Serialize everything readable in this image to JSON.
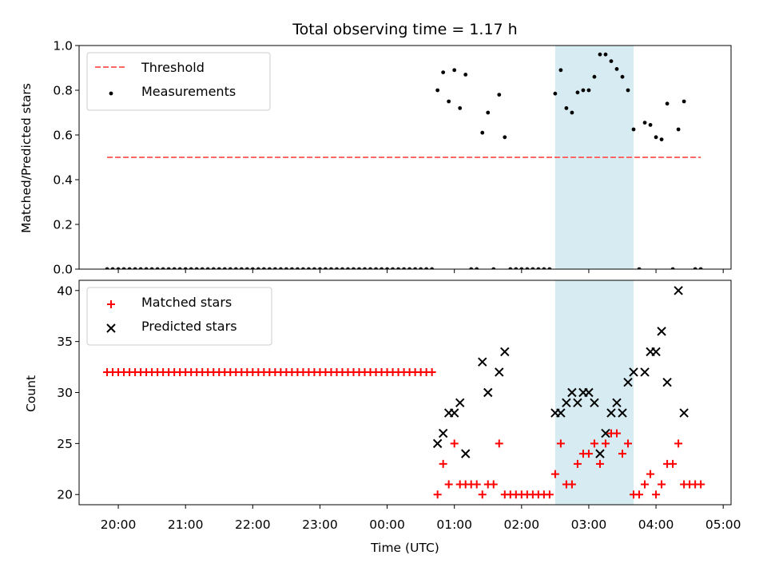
{
  "chart_data": {
    "title": "Total observing time = 1.17 h",
    "xlabel": "Time (UTC)",
    "x_unit": "hours since 20:00 UTC",
    "x_ticks": [
      "20:00",
      "21:00",
      "22:00",
      "23:00",
      "00:00",
      "01:00",
      "02:00",
      "03:00",
      "04:00",
      "05:00"
    ],
    "xlim": [
      "19:25",
      "05:07"
    ],
    "shaded_region": {
      "start": "02:30",
      "end": "03:40",
      "color": "#add8e6"
    },
    "panels": [
      {
        "type": "scatter",
        "ylabel": "Matched/Predicted stars",
        "ylim": [
          0.0,
          1.0
        ],
        "y_ticks": [
          "0.0",
          "0.2",
          "0.4",
          "0.6",
          "0.8",
          "1.0"
        ],
        "legend_position": "top-left",
        "threshold": {
          "name": "Threshold",
          "value": 0.5,
          "x_start": "19:50",
          "x_end": "04:40",
          "color": "#ff6666",
          "style": "dashed"
        },
        "measurements": {
          "name": "Measurements",
          "color": "#000000",
          "zero_x": [
            "19:50",
            "19:55",
            "20:00",
            "20:05",
            "20:10",
            "20:15",
            "20:20",
            "20:25",
            "20:30",
            "20:35",
            "20:40",
            "20:45",
            "20:50",
            "20:55",
            "21:00",
            "21:05",
            "21:10",
            "21:15",
            "21:20",
            "21:25",
            "21:30",
            "21:35",
            "21:40",
            "21:45",
            "21:50",
            "21:55",
            "22:00",
            "22:05",
            "22:10",
            "22:15",
            "22:20",
            "22:25",
            "22:30",
            "22:35",
            "22:40",
            "22:45",
            "22:50",
            "22:55",
            "23:00",
            "23:05",
            "23:10",
            "23:15",
            "23:20",
            "23:25",
            "23:30",
            "23:35",
            "23:40",
            "23:45",
            "23:50",
            "23:55",
            "00:00",
            "00:05",
            "00:10",
            "00:15",
            "00:20",
            "00:25",
            "00:30",
            "00:35",
            "00:40",
            "01:15",
            "01:20",
            "01:35",
            "01:50",
            "01:55",
            "02:00",
            "02:05",
            "02:10",
            "02:15",
            "02:20",
            "02:25",
            "03:45",
            "04:15",
            "04:35",
            "04:40"
          ],
          "points": [
            {
              "x": "00:45",
              "y": 0.8
            },
            {
              "x": "00:50",
              "y": 0.88
            },
            {
              "x": "00:55",
              "y": 0.75
            },
            {
              "x": "01:00",
              "y": 0.89
            },
            {
              "x": "01:05",
              "y": 0.72
            },
            {
              "x": "01:10",
              "y": 0.87
            },
            {
              "x": "01:25",
              "y": 0.61
            },
            {
              "x": "01:30",
              "y": 0.7
            },
            {
              "x": "01:40",
              "y": 0.78
            },
            {
              "x": "01:45",
              "y": 0.59
            },
            {
              "x": "02:30",
              "y": 0.785
            },
            {
              "x": "02:35",
              "y": 0.89
            },
            {
              "x": "02:40",
              "y": 0.72
            },
            {
              "x": "02:45",
              "y": 0.7
            },
            {
              "x": "02:50",
              "y": 0.79
            },
            {
              "x": "02:55",
              "y": 0.8
            },
            {
              "x": "03:00",
              "y": 0.8
            },
            {
              "x": "03:05",
              "y": 0.86
            },
            {
              "x": "03:10",
              "y": 0.96
            },
            {
              "x": "03:15",
              "y": 0.96
            },
            {
              "x": "03:20",
              "y": 0.93
            },
            {
              "x": "03:25",
              "y": 0.895
            },
            {
              "x": "03:30",
              "y": 0.86
            },
            {
              "x": "03:35",
              "y": 0.8
            },
            {
              "x": "03:40",
              "y": 0.625
            },
            {
              "x": "03:50",
              "y": 0.655
            },
            {
              "x": "03:55",
              "y": 0.645
            },
            {
              "x": "04:00",
              "y": 0.59
            },
            {
              "x": "04:05",
              "y": 0.58
            },
            {
              "x": "04:10",
              "y": 0.74
            },
            {
              "x": "04:20",
              "y": 0.625
            },
            {
              "x": "04:25",
              "y": 0.75
            }
          ]
        }
      },
      {
        "type": "scatter",
        "ylabel": "Count",
        "ylim": [
          19.0,
          41.0
        ],
        "y_ticks": [
          "20",
          "25",
          "30",
          "35",
          "40"
        ],
        "legend_position": "top-left",
        "series": [
          {
            "name": "Matched stars",
            "marker": "plus",
            "color": "#ff0000",
            "points": [
              {
                "x": "19:50",
                "y": 32
              },
              {
                "x": "19:55",
                "y": 32
              },
              {
                "x": "20:00",
                "y": 32
              },
              {
                "x": "20:05",
                "y": 32
              },
              {
                "x": "20:10",
                "y": 32
              },
              {
                "x": "20:15",
                "y": 32
              },
              {
                "x": "20:20",
                "y": 32
              },
              {
                "x": "20:25",
                "y": 32
              },
              {
                "x": "20:30",
                "y": 32
              },
              {
                "x": "20:35",
                "y": 32
              },
              {
                "x": "20:40",
                "y": 32
              },
              {
                "x": "20:45",
                "y": 32
              },
              {
                "x": "20:50",
                "y": 32
              },
              {
                "x": "20:55",
                "y": 32
              },
              {
                "x": "21:00",
                "y": 32
              },
              {
                "x": "21:05",
                "y": 32
              },
              {
                "x": "21:10",
                "y": 32
              },
              {
                "x": "21:15",
                "y": 32
              },
              {
                "x": "21:20",
                "y": 32
              },
              {
                "x": "21:25",
                "y": 32
              },
              {
                "x": "21:30",
                "y": 32
              },
              {
                "x": "21:35",
                "y": 32
              },
              {
                "x": "21:40",
                "y": 32
              },
              {
                "x": "21:45",
                "y": 32
              },
              {
                "x": "21:50",
                "y": 32
              },
              {
                "x": "21:55",
                "y": 32
              },
              {
                "x": "22:00",
                "y": 32
              },
              {
                "x": "22:05",
                "y": 32
              },
              {
                "x": "22:10",
                "y": 32
              },
              {
                "x": "22:15",
                "y": 32
              },
              {
                "x": "22:20",
                "y": 32
              },
              {
                "x": "22:25",
                "y": 32
              },
              {
                "x": "22:30",
                "y": 32
              },
              {
                "x": "22:35",
                "y": 32
              },
              {
                "x": "22:40",
                "y": 32
              },
              {
                "x": "22:45",
                "y": 32
              },
              {
                "x": "22:50",
                "y": 32
              },
              {
                "x": "22:55",
                "y": 32
              },
              {
                "x": "23:00",
                "y": 32
              },
              {
                "x": "23:05",
                "y": 32
              },
              {
                "x": "23:10",
                "y": 32
              },
              {
                "x": "23:15",
                "y": 32
              },
              {
                "x": "23:20",
                "y": 32
              },
              {
                "x": "23:25",
                "y": 32
              },
              {
                "x": "23:30",
                "y": 32
              },
              {
                "x": "23:35",
                "y": 32
              },
              {
                "x": "23:40",
                "y": 32
              },
              {
                "x": "23:45",
                "y": 32
              },
              {
                "x": "23:50",
                "y": 32
              },
              {
                "x": "23:55",
                "y": 32
              },
              {
                "x": "00:00",
                "y": 32
              },
              {
                "x": "00:05",
                "y": 32
              },
              {
                "x": "00:10",
                "y": 32
              },
              {
                "x": "00:15",
                "y": 32
              },
              {
                "x": "00:20",
                "y": 32
              },
              {
                "x": "00:25",
                "y": 32
              },
              {
                "x": "00:30",
                "y": 32
              },
              {
                "x": "00:35",
                "y": 32
              },
              {
                "x": "00:40",
                "y": 32
              },
              {
                "x": "00:45",
                "y": 20
              },
              {
                "x": "00:50",
                "y": 23
              },
              {
                "x": "00:55",
                "y": 21
              },
              {
                "x": "01:00",
                "y": 25
              },
              {
                "x": "01:05",
                "y": 21
              },
              {
                "x": "01:10",
                "y": 21
              },
              {
                "x": "01:15",
                "y": 21
              },
              {
                "x": "01:20",
                "y": 21
              },
              {
                "x": "01:25",
                "y": 20
              },
              {
                "x": "01:30",
                "y": 21
              },
              {
                "x": "01:35",
                "y": 21
              },
              {
                "x": "01:40",
                "y": 25
              },
              {
                "x": "01:45",
                "y": 20
              },
              {
                "x": "01:50",
                "y": 20
              },
              {
                "x": "01:55",
                "y": 20
              },
              {
                "x": "02:00",
                "y": 20
              },
              {
                "x": "02:05",
                "y": 20
              },
              {
                "x": "02:10",
                "y": 20
              },
              {
                "x": "02:15",
                "y": 20
              },
              {
                "x": "02:20",
                "y": 20
              },
              {
                "x": "02:25",
                "y": 20
              },
              {
                "x": "02:30",
                "y": 22
              },
              {
                "x": "02:35",
                "y": 25
              },
              {
                "x": "02:40",
                "y": 21
              },
              {
                "x": "02:45",
                "y": 21
              },
              {
                "x": "02:50",
                "y": 23
              },
              {
                "x": "02:55",
                "y": 24
              },
              {
                "x": "03:00",
                "y": 24
              },
              {
                "x": "03:05",
                "y": 25
              },
              {
                "x": "03:10",
                "y": 23
              },
              {
                "x": "03:15",
                "y": 25
              },
              {
                "x": "03:20",
                "y": 26
              },
              {
                "x": "03:25",
                "y": 26
              },
              {
                "x": "03:30",
                "y": 24
              },
              {
                "x": "03:35",
                "y": 25
              },
              {
                "x": "03:40",
                "y": 20
              },
              {
                "x": "03:45",
                "y": 20
              },
              {
                "x": "03:50",
                "y": 21
              },
              {
                "x": "03:55",
                "y": 22
              },
              {
                "x": "04:00",
                "y": 20
              },
              {
                "x": "04:05",
                "y": 21
              },
              {
                "x": "04:10",
                "y": 23
              },
              {
                "x": "04:15",
                "y": 23
              },
              {
                "x": "04:20",
                "y": 25
              },
              {
                "x": "04:25",
                "y": 21
              },
              {
                "x": "04:30",
                "y": 21
              },
              {
                "x": "04:35",
                "y": 21
              },
              {
                "x": "04:40",
                "y": 21
              }
            ]
          },
          {
            "name": "Predicted stars",
            "marker": "x",
            "color": "#000000",
            "points": [
              {
                "x": "00:45",
                "y": 25
              },
              {
                "x": "00:50",
                "y": 26
              },
              {
                "x": "00:55",
                "y": 28
              },
              {
                "x": "01:00",
                "y": 28
              },
              {
                "x": "01:05",
                "y": 29
              },
              {
                "x": "01:10",
                "y": 24
              },
              {
                "x": "01:25",
                "y": 33
              },
              {
                "x": "01:30",
                "y": 30
              },
              {
                "x": "01:40",
                "y": 32
              },
              {
                "x": "01:45",
                "y": 34
              },
              {
                "x": "02:30",
                "y": 28
              },
              {
                "x": "02:35",
                "y": 28
              },
              {
                "x": "02:40",
                "y": 29
              },
              {
                "x": "02:45",
                "y": 30
              },
              {
                "x": "02:50",
                "y": 29
              },
              {
                "x": "02:55",
                "y": 30
              },
              {
                "x": "03:00",
                "y": 30
              },
              {
                "x": "03:05",
                "y": 29
              },
              {
                "x": "03:10",
                "y": 24
              },
              {
                "x": "03:15",
                "y": 26
              },
              {
                "x": "03:20",
                "y": 28
              },
              {
                "x": "03:25",
                "y": 29
              },
              {
                "x": "03:30",
                "y": 28
              },
              {
                "x": "03:35",
                "y": 31
              },
              {
                "x": "03:40",
                "y": 32
              },
              {
                "x": "03:50",
                "y": 32
              },
              {
                "x": "03:55",
                "y": 34
              },
              {
                "x": "04:00",
                "y": 34
              },
              {
                "x": "04:05",
                "y": 36
              },
              {
                "x": "04:10",
                "y": 31
              },
              {
                "x": "04:20",
                "y": 40
              },
              {
                "x": "04:25",
                "y": 28
              }
            ]
          }
        ]
      }
    ]
  }
}
